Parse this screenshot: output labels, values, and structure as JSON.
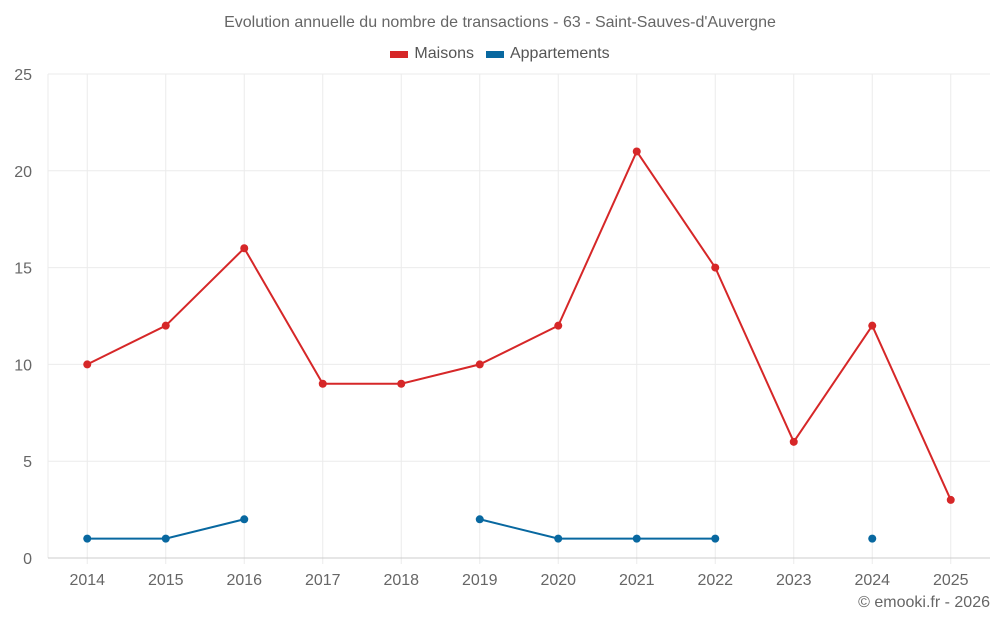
{
  "header": {
    "title": "Evolution annuelle du nombre de transactions - 63 - Saint-Sauves-d'Auvergne"
  },
  "legend": {
    "items": [
      {
        "label": "Maisons",
        "color": "#d62728"
      },
      {
        "label": "Appartements",
        "color": "#0868a0"
      }
    ]
  },
  "footer": {
    "credit": "© emooki.fr - 2026"
  },
  "chart_data": {
    "type": "line",
    "title": "Evolution annuelle du nombre de transactions - 63 - Saint-Sauves-d'Auvergne",
    "xlabel": "",
    "ylabel": "",
    "categories": [
      "2014",
      "2015",
      "2016",
      "2017",
      "2018",
      "2019",
      "2020",
      "2021",
      "2022",
      "2023",
      "2024",
      "2025"
    ],
    "series": [
      {
        "name": "Maisons",
        "color": "#d62728",
        "values": [
          10,
          12,
          16,
          9,
          9,
          10,
          12,
          21,
          15,
          6,
          12,
          3
        ]
      },
      {
        "name": "Appartements",
        "color": "#0868a0",
        "values": [
          1,
          1,
          2,
          null,
          null,
          2,
          1,
          1,
          1,
          null,
          1,
          null
        ]
      }
    ],
    "ylim": [
      0,
      25
    ],
    "yticks": [
      0,
      5,
      10,
      15,
      20,
      25
    ],
    "grid": true,
    "legend_position": "top"
  }
}
